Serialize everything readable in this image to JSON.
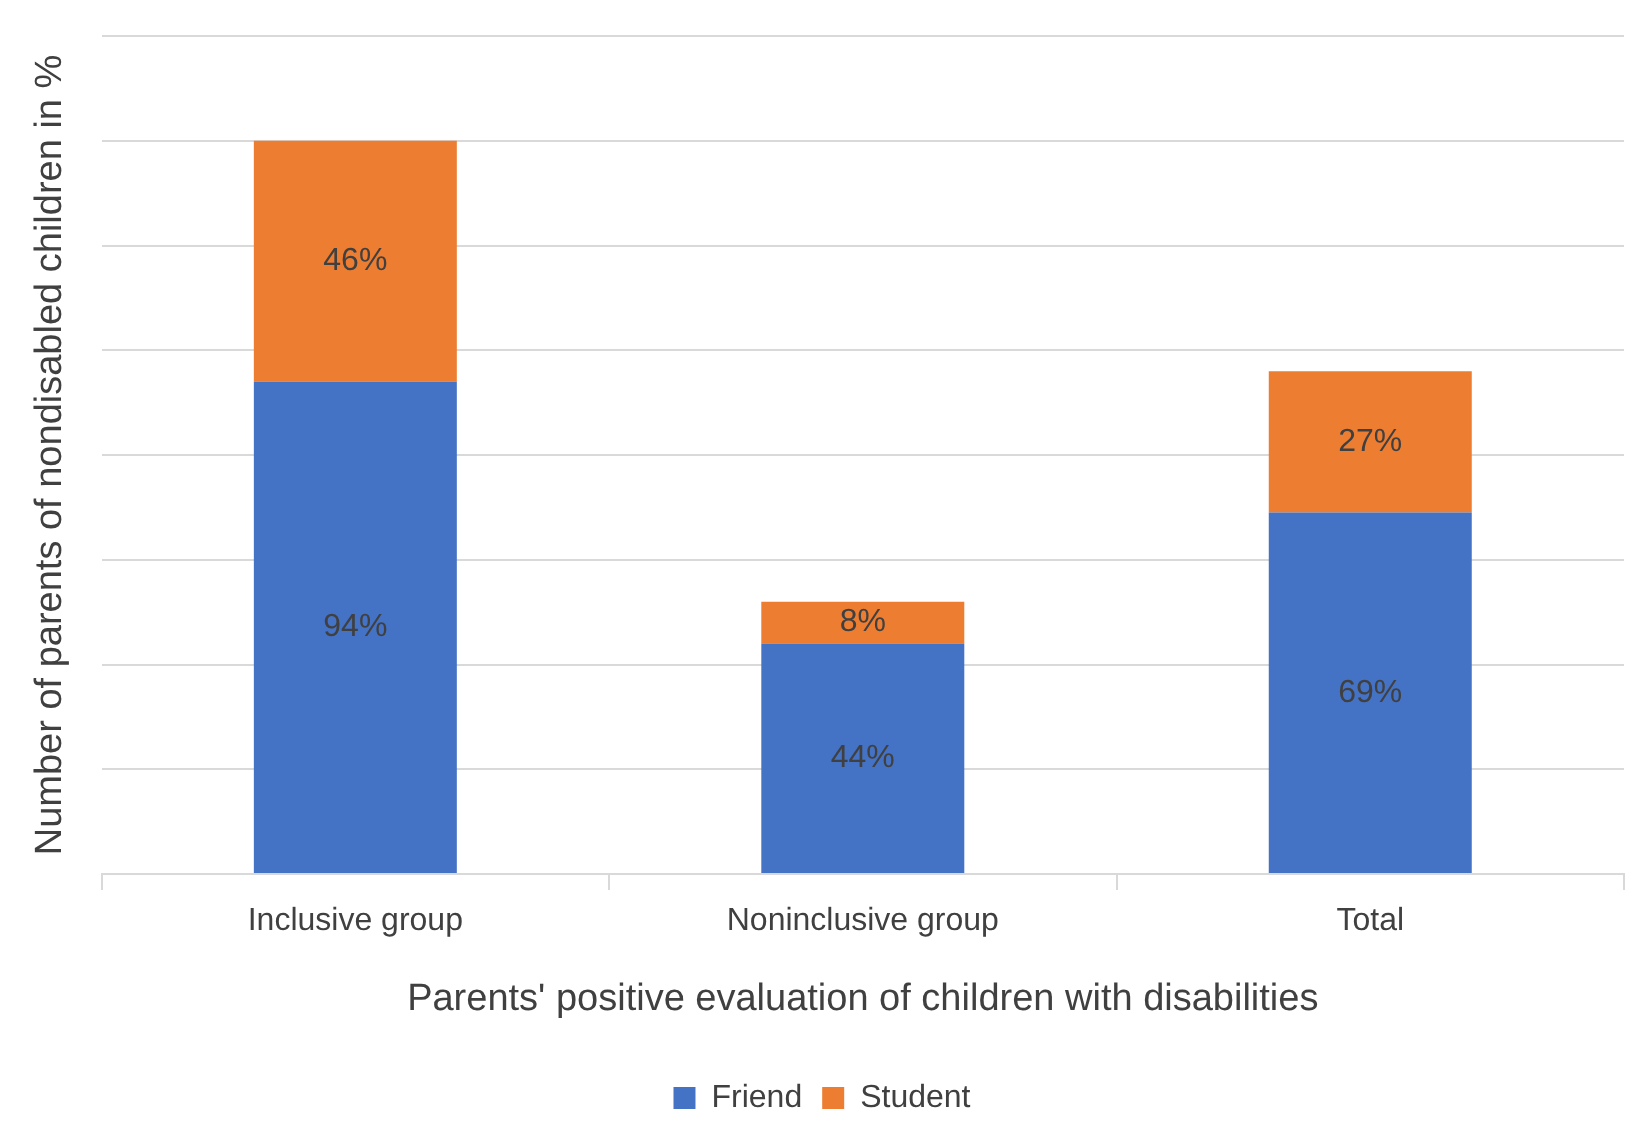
{
  "chart_data": {
    "type": "bar",
    "stacked": true,
    "xlabel": "Parents' positive evaluation of children with disabilities",
    "ylabel": "Number of parents of nondisabled children in %",
    "categories": [
      "Inclusive group",
      "Noninclusive group",
      "Total"
    ],
    "series": [
      {
        "name": "Friend",
        "color": "#4472c4",
        "values": [
          94,
          44,
          69
        ],
        "value_labels": [
          "94%",
          "44%",
          "69%"
        ]
      },
      {
        "name": "Student",
        "color": "#ed7d31",
        "values": [
          46,
          8,
          27
        ],
        "value_labels": [
          "46%",
          "8%",
          "27%"
        ]
      }
    ],
    "ylim": [
      0,
      160
    ],
    "yticks": [
      {
        "value": 0,
        "label": null
      },
      {
        "value": 20,
        "label": null
      },
      {
        "value": 40,
        "label": null
      },
      {
        "value": 60,
        "label": null
      },
      {
        "value": 80,
        "label": null
      },
      {
        "value": 100,
        "label": null
      },
      {
        "value": 120,
        "label": null
      },
      {
        "value": 140,
        "label": null
      },
      {
        "value": 160,
        "label": null
      }
    ],
    "grid": "y",
    "tick_labels": "x",
    "legend": "bottom"
  }
}
